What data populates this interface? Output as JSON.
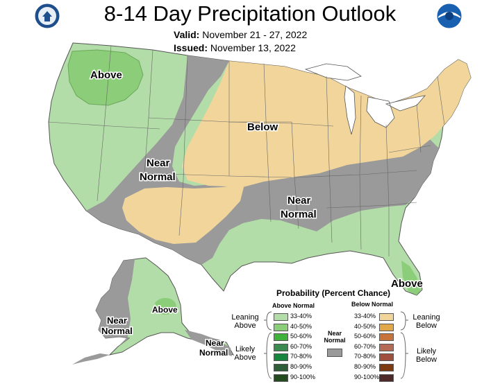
{
  "title": "8-14 Day Precipitation Outlook",
  "valid_label": "Valid:",
  "valid_value": "November 21 - 27, 2022",
  "issued_label": "Issued:",
  "issued_value": "November 13, 2022",
  "logos": {
    "left": "doc-seal-icon",
    "right": "noaa-logo-icon"
  },
  "map_labels": {
    "above_nw": "Above",
    "below": "Below",
    "near_normal_west_1": "Near",
    "near_normal_west_2": "Normal",
    "near_normal_south_1": "Near",
    "near_normal_south_2": "Normal",
    "above_fl": "Above",
    "near_normal_ak_1": "Near",
    "near_normal_ak_2": "Normal",
    "above_ak": "Above",
    "near_normal_aleut_1": "Near",
    "near_normal_aleut_2": "Normal"
  },
  "colors": {
    "above_leaning": "#b3dda8",
    "above_40_50": "#8ccd79",
    "below_leaning": "#f1d59b",
    "near_normal": "#9a9a9a",
    "state_lines": "#555555"
  },
  "legend": {
    "title": "Probability (Percent Chance)",
    "above_header": "Above Normal",
    "below_header": "Below Normal",
    "leaning_above": "Leaning Above",
    "likely_above": "Likely Above",
    "leaning_below": "Leaning Below",
    "likely_below": "Likely Below",
    "near_normal_1": "Near",
    "near_normal_2": "Normal",
    "above_rows": [
      {
        "label": "33-40%",
        "color": "#b3dda8"
      },
      {
        "label": "40-50%",
        "color": "#8ccd79"
      },
      {
        "label": "50-60%",
        "color": "#40b13a"
      },
      {
        "label": "60-70%",
        "color": "#3b8a50"
      },
      {
        "label": "70-80%",
        "color": "#16863f"
      },
      {
        "label": "80-90%",
        "color": "#2d5e38"
      },
      {
        "label": "90-100%",
        "color": "#244a20"
      }
    ],
    "below_rows": [
      {
        "label": "33-40%",
        "color": "#f1d59b"
      },
      {
        "label": "40-50%",
        "color": "#e0a849"
      },
      {
        "label": "50-60%",
        "color": "#c6733c"
      },
      {
        "label": "60-70%",
        "color": "#b46a54"
      },
      {
        "label": "70-80%",
        "color": "#a04f3e"
      },
      {
        "label": "80-90%",
        "color": "#7c3b10"
      },
      {
        "label": "90-100%",
        "color": "#4d2a27"
      }
    ]
  }
}
